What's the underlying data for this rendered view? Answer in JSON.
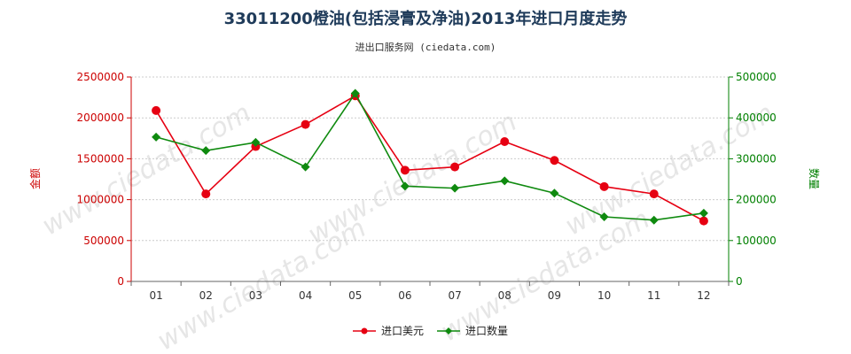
{
  "chart_data": {
    "type": "line",
    "title": "33011200橙油(包括浸膏及净油)2013年进口月度走势",
    "subtitle": "进出口服务网 (ciedata.com)",
    "categories": [
      "01",
      "02",
      "03",
      "04",
      "05",
      "06",
      "07",
      "08",
      "09",
      "10",
      "11",
      "12"
    ],
    "y_left": {
      "label": "金额",
      "range": [
        0,
        2500000
      ],
      "ticks": [
        "0",
        "500000",
        "1000000",
        "1500000",
        "2000000",
        "2500000"
      ],
      "color": "#e60012"
    },
    "y_right": {
      "label": "数量",
      "range": [
        0,
        500000
      ],
      "ticks": [
        "0",
        "100000",
        "200000",
        "300000",
        "400000",
        "500000"
      ],
      "color": "#008000"
    },
    "grid": true,
    "legend_position": "bottom-center",
    "series": [
      {
        "name": "进口美元",
        "axis": "left",
        "color": "#e60012",
        "marker": "circle",
        "values": [
          2090000,
          1070000,
          1650000,
          1920000,
          2270000,
          1360000,
          1400000,
          1710000,
          1480000,
          1160000,
          1070000,
          740000
        ]
      },
      {
        "name": "进口数量",
        "axis": "right",
        "color": "#0f8a0f",
        "marker": "diamond",
        "values": [
          353000,
          320000,
          340000,
          280000,
          460000,
          233000,
          228000,
          246000,
          216000,
          158000,
          150000,
          167000
        ]
      }
    ]
  },
  "watermark_text": "www.ciedata.com"
}
